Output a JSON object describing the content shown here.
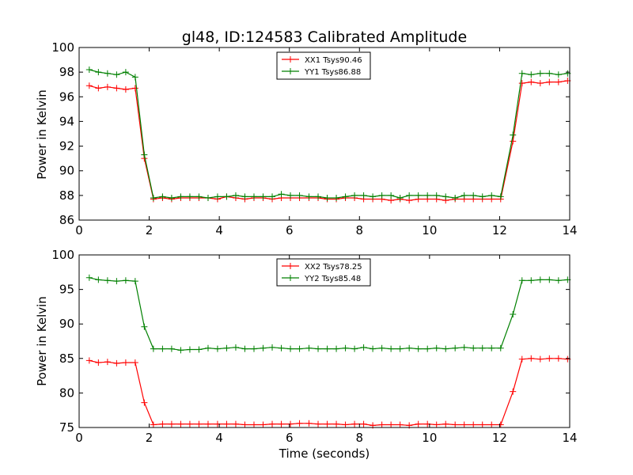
{
  "chart_data": [
    {
      "type": "line",
      "title": "gl48, ID:124583 Calibrated Amplitude",
      "xlabel": "",
      "ylabel": "Power in Kelvin",
      "xlim": [
        0,
        14
      ],
      "ylim": [
        86,
        100
      ],
      "xticks": [
        0,
        2,
        4,
        6,
        8,
        10,
        12,
        14
      ],
      "yticks": [
        86,
        88,
        90,
        92,
        94,
        96,
        98,
        100
      ],
      "grid": false,
      "legend_position": "top-center",
      "x": [
        0.29,
        0.55,
        0.81,
        1.07,
        1.33,
        1.6,
        1.86,
        2.12,
        2.38,
        2.64,
        2.9,
        3.16,
        3.42,
        3.68,
        3.95,
        4.21,
        4.47,
        4.73,
        4.99,
        5.25,
        5.51,
        5.77,
        6.03,
        6.29,
        6.56,
        6.82,
        7.08,
        7.34,
        7.6,
        7.86,
        8.12,
        8.38,
        8.64,
        8.9,
        9.16,
        9.42,
        9.68,
        9.94,
        10.2,
        10.46,
        10.73,
        10.99,
        11.25,
        11.51,
        11.77,
        12.03,
        12.38,
        12.64,
        12.9,
        13.16,
        13.42,
        13.68,
        13.94
      ],
      "series": [
        {
          "name": "XX1 Tsys90.46",
          "color": "#ff0000",
          "values": [
            96.9,
            96.7,
            96.8,
            96.7,
            96.6,
            96.7,
            91.0,
            87.7,
            87.8,
            87.7,
            87.8,
            87.8,
            87.8,
            87.8,
            87.7,
            87.9,
            87.8,
            87.7,
            87.8,
            87.8,
            87.7,
            87.8,
            87.8,
            87.8,
            87.8,
            87.8,
            87.7,
            87.7,
            87.8,
            87.8,
            87.7,
            87.7,
            87.7,
            87.6,
            87.7,
            87.6,
            87.7,
            87.7,
            87.7,
            87.6,
            87.7,
            87.7,
            87.7,
            87.7,
            87.7,
            87.7,
            92.4,
            97.1,
            97.2,
            97.1,
            97.2,
            97.2,
            97.3
          ]
        },
        {
          "name": "YY1 Tsys86.88",
          "color": "#008000",
          "values": [
            98.2,
            98.0,
            97.9,
            97.8,
            98.0,
            97.6,
            91.3,
            87.8,
            87.9,
            87.8,
            87.9,
            87.9,
            87.9,
            87.8,
            87.9,
            87.9,
            88.0,
            87.9,
            87.9,
            87.9,
            87.9,
            88.1,
            88.0,
            88.0,
            87.9,
            87.9,
            87.8,
            87.8,
            87.9,
            88.0,
            88.0,
            87.9,
            88.0,
            88.0,
            87.8,
            88.0,
            88.0,
            88.0,
            88.0,
            87.9,
            87.8,
            88.0,
            88.0,
            87.9,
            88.0,
            87.9,
            92.9,
            97.9,
            97.8,
            97.9,
            97.9,
            97.8,
            97.9
          ]
        }
      ]
    },
    {
      "type": "line",
      "title": "",
      "xlabel": "Time (seconds)",
      "ylabel": "Power in Kelvin",
      "xlim": [
        0,
        14
      ],
      "ylim": [
        75,
        100
      ],
      "xticks": [
        0,
        2,
        4,
        6,
        8,
        10,
        12,
        14
      ],
      "yticks": [
        75,
        80,
        85,
        90,
        95,
        100
      ],
      "grid": false,
      "legend_position": "top-center",
      "x": [
        0.29,
        0.55,
        0.81,
        1.07,
        1.33,
        1.6,
        1.86,
        2.12,
        2.38,
        2.64,
        2.9,
        3.16,
        3.42,
        3.68,
        3.95,
        4.21,
        4.47,
        4.73,
        4.99,
        5.25,
        5.51,
        5.77,
        6.03,
        6.29,
        6.56,
        6.82,
        7.08,
        7.34,
        7.6,
        7.86,
        8.12,
        8.38,
        8.64,
        8.9,
        9.16,
        9.42,
        9.68,
        9.94,
        10.2,
        10.46,
        10.73,
        10.99,
        11.25,
        11.51,
        11.77,
        12.03,
        12.38,
        12.64,
        12.9,
        13.16,
        13.42,
        13.68,
        13.94
      ],
      "series": [
        {
          "name": "XX2 Tsys78.25",
          "color": "#ff0000",
          "values": [
            84.7,
            84.4,
            84.5,
            84.3,
            84.4,
            84.4,
            78.6,
            75.4,
            75.5,
            75.5,
            75.5,
            75.5,
            75.5,
            75.5,
            75.5,
            75.5,
            75.5,
            75.4,
            75.4,
            75.4,
            75.5,
            75.5,
            75.5,
            75.6,
            75.6,
            75.5,
            75.5,
            75.5,
            75.4,
            75.5,
            75.5,
            75.3,
            75.4,
            75.4,
            75.4,
            75.3,
            75.5,
            75.5,
            75.4,
            75.5,
            75.4,
            75.4,
            75.4,
            75.4,
            75.4,
            75.4,
            80.2,
            84.9,
            85.0,
            84.9,
            85.0,
            85.0,
            84.9
          ]
        },
        {
          "name": "YY2 Tsys85.48",
          "color": "#008000",
          "values": [
            96.7,
            96.4,
            96.3,
            96.2,
            96.3,
            96.2,
            89.6,
            86.4,
            86.4,
            86.4,
            86.2,
            86.3,
            86.3,
            86.5,
            86.4,
            86.5,
            86.6,
            86.4,
            86.4,
            86.5,
            86.6,
            86.5,
            86.4,
            86.4,
            86.5,
            86.4,
            86.4,
            86.4,
            86.5,
            86.4,
            86.6,
            86.4,
            86.5,
            86.4,
            86.4,
            86.5,
            86.4,
            86.4,
            86.5,
            86.4,
            86.5,
            86.6,
            86.5,
            86.5,
            86.5,
            86.5,
            91.4,
            96.3,
            96.3,
            96.4,
            96.4,
            96.3,
            96.4
          ]
        }
      ]
    }
  ]
}
